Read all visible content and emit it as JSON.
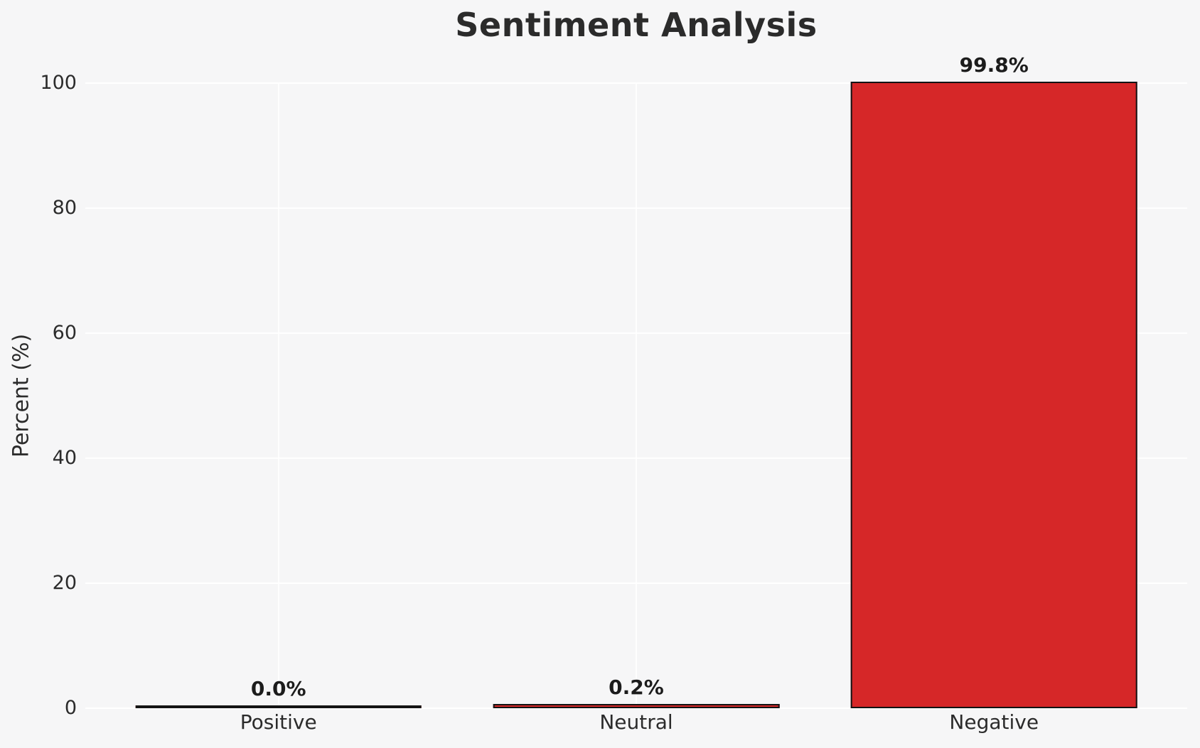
{
  "chart": {
    "title": "Sentiment Analysis",
    "ylabel": "Percent (%)"
  },
  "chart_data": {
    "type": "bar",
    "title": "Sentiment Analysis",
    "xlabel": "",
    "ylabel": "Percent (%)",
    "categories": [
      "Positive",
      "Neutral",
      "Negative"
    ],
    "values": [
      0.0,
      0.2,
      99.8
    ],
    "value_labels": [
      "0.0%",
      "0.2%",
      "99.8%"
    ],
    "yticks": [
      "0",
      "20",
      "40",
      "60",
      "80",
      "100"
    ],
    "ytick_values": [
      0,
      20,
      40,
      60,
      80,
      100
    ],
    "ylim": [
      0,
      105
    ],
    "grid": "on",
    "legend": "none",
    "colors": {
      "bar_fill": "#d62728",
      "bar_edge": "#141414",
      "background": "#f6f6f7",
      "gridline": "#ffffff",
      "text": "#2b2b2b",
      "value_label_text": "#1c1c1c"
    }
  }
}
